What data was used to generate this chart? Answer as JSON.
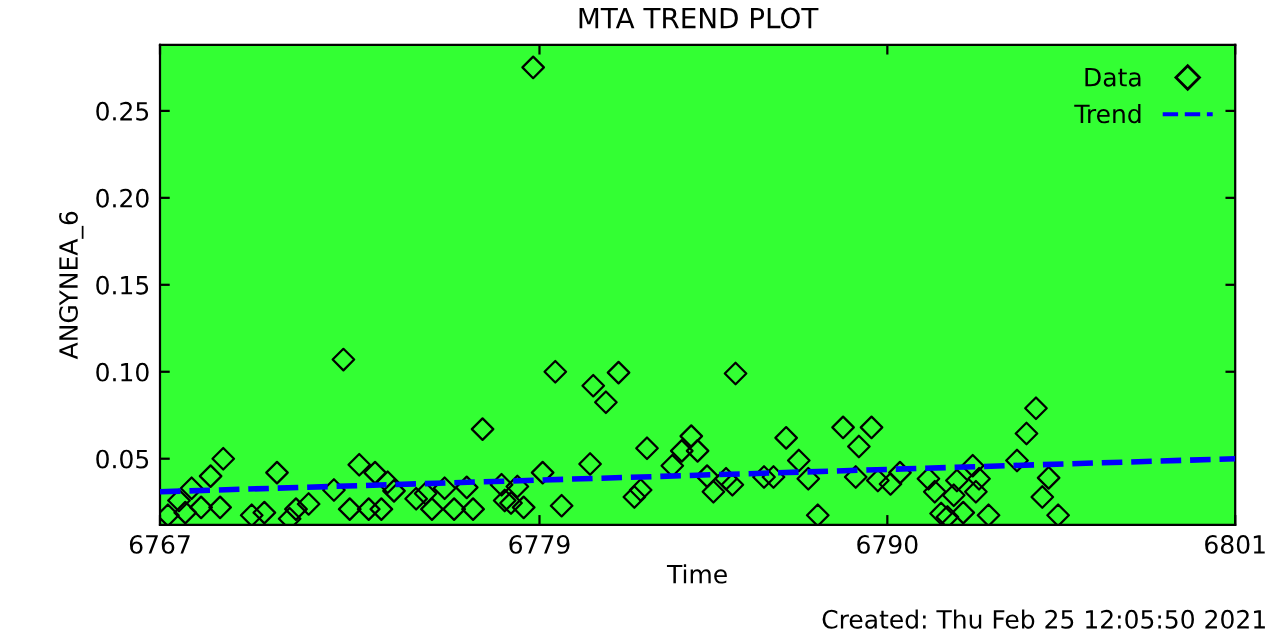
{
  "chart_data": {
    "type": "scatter",
    "title": "MTA TREND PLOT",
    "xlabel": "Time",
    "ylabel": "ANGYNEA_6",
    "xlim": [
      6767,
      6801
    ],
    "xticks": [
      6767,
      6779,
      6790,
      6801
    ],
    "ylim": [
      0.012,
      0.288
    ],
    "yticks": [
      0.05,
      {
        "value": 0.1,
        "label": "0.10"
      },
      0.15,
      {
        "value": 0.2,
        "label": "0.20"
      },
      0.25
    ],
    "grid": false,
    "legend": "top right",
    "annotations": [
      "Created: Thu Feb 25 12:05:50 2021"
    ],
    "series": [
      {
        "name": "Data",
        "marker": "diamond",
        "color": "#000000",
        "x": [
          6767.25,
          6767.6,
          6767.8,
          6768.0,
          6768.3,
          6768.6,
          6768.9,
          6769.0,
          6769.9,
          6770.3,
          6770.7,
          6771.1,
          6771.3,
          6771.7,
          6772.5,
          6772.8,
          6773.0,
          6773.3,
          6773.6,
          6773.8,
          6774.0,
          6774.2,
          6774.4,
          6775.1,
          6775.4,
          6775.6,
          6776.0,
          6776.3,
          6776.7,
          6776.9,
          6777.2,
          6777.8,
          6777.9,
          6778.1,
          6778.3,
          6778.5,
          6778.8,
          6779.1,
          6779.5,
          6779.7,
          6780.6,
          6780.7,
          6781.1,
          6781.5,
          6782.0,
          6782.2,
          6782.4,
          6783.2,
          6783.5,
          6783.8,
          6784.0,
          6784.3,
          6784.5,
          6784.9,
          6785.1,
          6785.2,
          6786.1,
          6786.4,
          6786.8,
          6787.2,
          6787.5,
          6787.8,
          6788.6,
          6789.0,
          6789.1,
          6789.5,
          6789.7,
          6790.1,
          6790.4,
          6791.3,
          6791.5,
          6791.7,
          6791.9,
          6792.1,
          6792.2,
          6792.4,
          6792.7,
          6792.8,
          6792.9,
          6793.2,
          6794.1,
          6794.4,
          6794.7,
          6794.9,
          6795.1,
          6795.4
        ],
        "values": [
          0.0175,
          0.026,
          0.019,
          0.033,
          0.022,
          0.04,
          0.022,
          0.05,
          0.0175,
          0.019,
          0.042,
          0.0155,
          0.021,
          0.024,
          0.032,
          0.107,
          0.021,
          0.0465,
          0.021,
          0.042,
          0.021,
          0.0365,
          0.0315,
          0.027,
          0.03,
          0.021,
          0.033,
          0.021,
          0.0335,
          0.021,
          0.067,
          0.035,
          0.026,
          0.0245,
          0.034,
          0.022,
          0.275,
          0.042,
          0.1,
          0.023,
          0.047,
          0.092,
          0.0825,
          0.0995,
          0.028,
          0.032,
          0.056,
          0.046,
          0.0545,
          0.063,
          0.0545,
          0.04,
          0.031,
          0.0385,
          0.035,
          0.099,
          0.0395,
          0.0395,
          0.062,
          0.049,
          0.0385,
          0.0175,
          0.068,
          0.0395,
          0.057,
          0.068,
          0.0375,
          0.0355,
          0.042,
          0.0385,
          0.031,
          0.0185,
          0.0165,
          0.029,
          0.0375,
          0.019,
          0.046,
          0.031,
          0.0385,
          0.0175,
          0.049,
          0.0645,
          0.079,
          0.028,
          0.039,
          0.0175
        ]
      },
      {
        "name": "Trend",
        "type": "line",
        "line_style": "dashed",
        "color": "#0000ff",
        "x": [
          6767,
          6801
        ],
        "values": [
          0.031,
          0.05
        ]
      }
    ]
  }
}
